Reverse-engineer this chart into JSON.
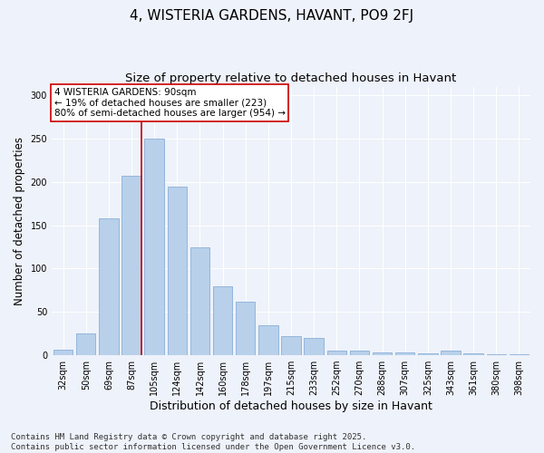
{
  "title": "4, WISTERIA GARDENS, HAVANT, PO9 2FJ",
  "subtitle": "Size of property relative to detached houses in Havant",
  "xlabel": "Distribution of detached houses by size in Havant",
  "ylabel": "Number of detached properties",
  "categories": [
    "32sqm",
    "50sqm",
    "69sqm",
    "87sqm",
    "105sqm",
    "124sqm",
    "142sqm",
    "160sqm",
    "178sqm",
    "197sqm",
    "215sqm",
    "233sqm",
    "252sqm",
    "270sqm",
    "288sqm",
    "307sqm",
    "325sqm",
    "343sqm",
    "361sqm",
    "380sqm",
    "398sqm"
  ],
  "values": [
    6,
    25,
    158,
    207,
    250,
    195,
    125,
    80,
    62,
    35,
    22,
    20,
    5,
    5,
    3,
    3,
    2,
    5,
    2,
    1,
    1
  ],
  "bar_color": "#b8d0ea",
  "bar_edge_color": "#8ab0d8",
  "vline_color": "#cc0000",
  "annotation_text": "4 WISTERIA GARDENS: 90sqm\n← 19% of detached houses are smaller (223)\n80% of semi-detached houses are larger (954) →",
  "annotation_box_color": "#ffffff",
  "annotation_box_edge": "#cc0000",
  "ylim": [
    0,
    310
  ],
  "yticks": [
    0,
    50,
    100,
    150,
    200,
    250,
    300
  ],
  "background_color": "#eef2fa",
  "grid_color": "#ffffff",
  "footer": "Contains HM Land Registry data © Crown copyright and database right 2025.\nContains public sector information licensed under the Open Government Licence v3.0.",
  "title_fontsize": 11,
  "subtitle_fontsize": 9.5,
  "xlabel_fontsize": 9,
  "ylabel_fontsize": 8.5,
  "tick_fontsize": 7,
  "footer_fontsize": 6.5,
  "annotation_fontsize": 7.5
}
